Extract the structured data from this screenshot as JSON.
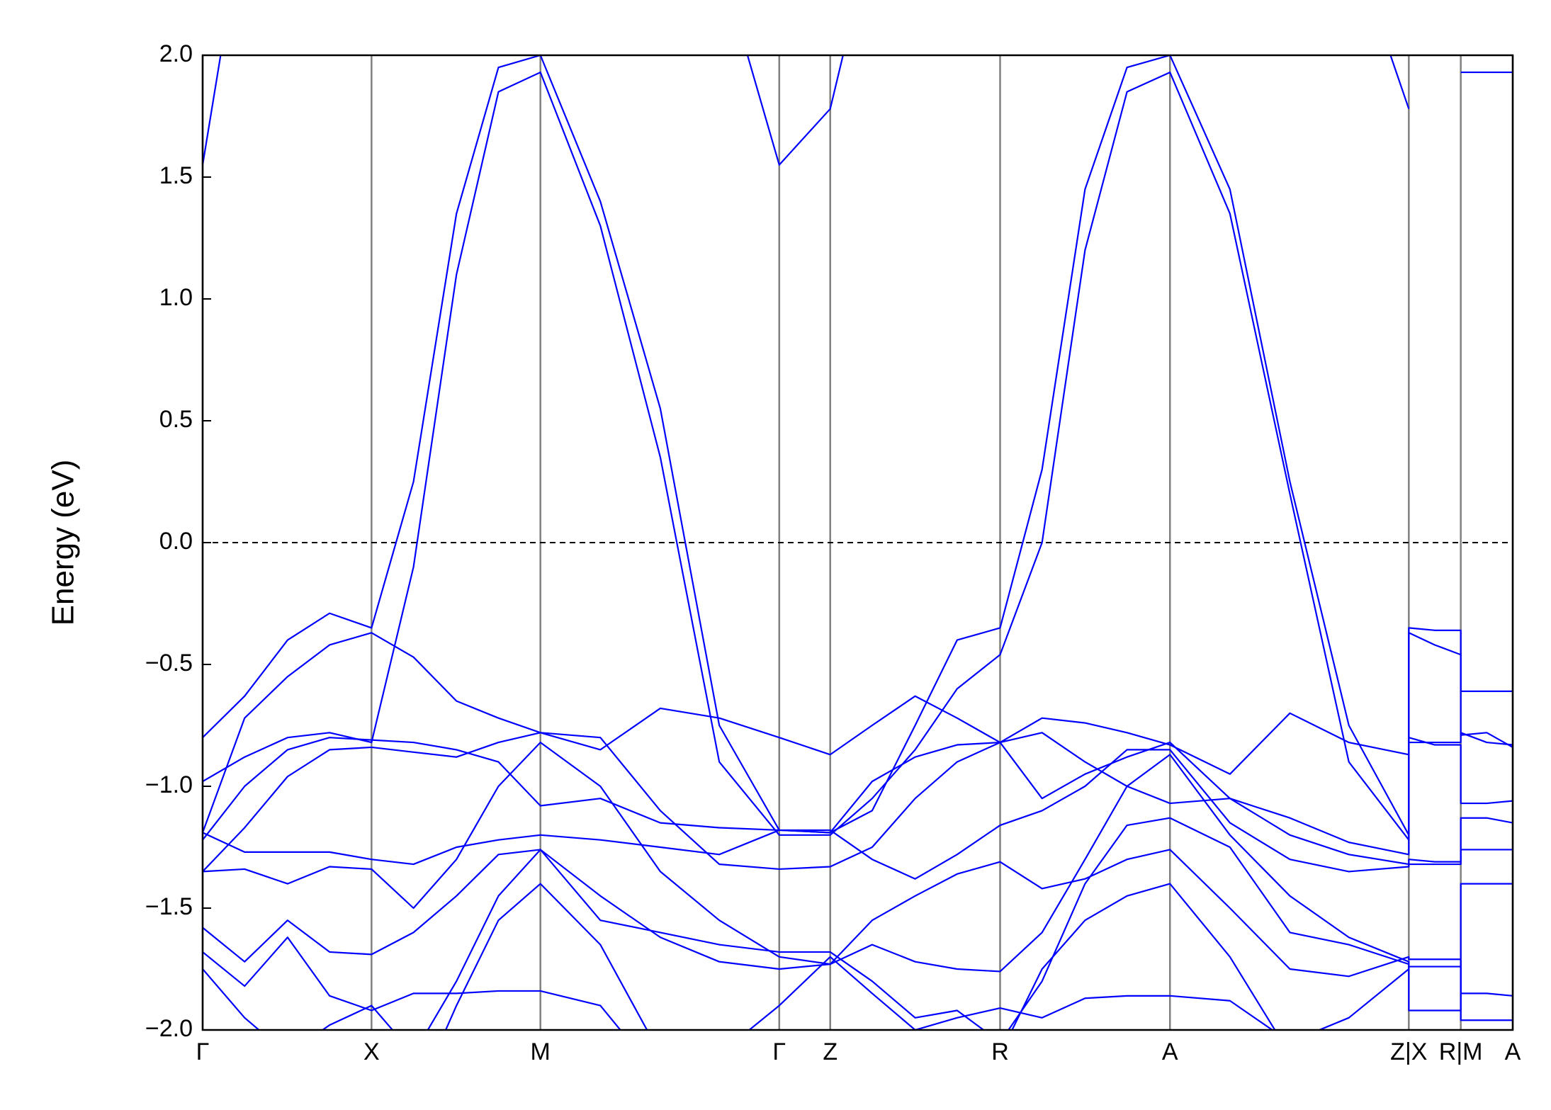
{
  "chart_data": {
    "type": "line",
    "ylabel": "Energy (eV)",
    "x": [
      0,
      0.42,
      0.85,
      1.27,
      1.69,
      2.11,
      2.54,
      2.96,
      3.38,
      3.98,
      4.58,
      5.17,
      5.77,
      6.28,
      6.7,
      7.13,
      7.55,
      7.98,
      8.4,
      8.83,
      9.25,
      9.68,
      10.28,
      10.88,
      11.47,
      12.07,
      12.07,
      12.33,
      12.59,
      12.59,
      12.85,
      13.11
    ],
    "xlim": [
      0,
      13.11
    ],
    "xticks": [
      {
        "value": 0,
        "label": "Γ"
      },
      {
        "value": 1.69,
        "label": "X"
      },
      {
        "value": 3.38,
        "label": "M"
      },
      {
        "value": 5.77,
        "label": "Γ"
      },
      {
        "value": 6.28,
        "label": "Z"
      },
      {
        "value": 7.98,
        "label": "R"
      },
      {
        "value": 9.68,
        "label": "A"
      },
      {
        "value": 12.07,
        "label": "Z|X"
      },
      {
        "value": 12.59,
        "label": "R|M"
      },
      {
        "value": 13.11,
        "label": "A"
      }
    ],
    "ylim": [
      -2,
      2
    ],
    "yticks": [
      {
        "value": -2,
        "label": "−2.0"
      },
      {
        "value": -1.5,
        "label": "−1.5"
      },
      {
        "value": -1,
        "label": "−1.0"
      },
      {
        "value": -0.5,
        "label": "−0.5"
      },
      {
        "value": 0,
        "label": "0.0"
      },
      0.5,
      {
        "value": 1,
        "label": "1.0"
      },
      1.5,
      {
        "value": 2,
        "label": "2.0"
      }
    ],
    "grid": "x",
    "fermi_level": 0,
    "series": [
      {
        "color": "#0000ff",
        "values": [
          1.55,
          2.6,
          null,
          null,
          null,
          null,
          null,
          null,
          null,
          null,
          null,
          2.4,
          1.55,
          1.78,
          2.5,
          null,
          null,
          null,
          null,
          null,
          null,
          null,
          null,
          null,
          2.5,
          1.78,
          null,
          null,
          null,
          1.93,
          1.93,
          1.93
        ]
      },
      {
        "color": "#0000ff",
        "values": [
          -0.8,
          -0.63,
          -0.4,
          -0.29,
          -0.35,
          0.25,
          1.35,
          1.95,
          2.0,
          1.4,
          0.55,
          -0.75,
          -1.18,
          -1.19,
          -1.1,
          -0.75,
          -0.4,
          -0.35,
          0.3,
          1.45,
          1.95,
          2.0,
          1.45,
          0.25,
          -0.75,
          -1.2,
          -0.35,
          -0.36,
          -0.36,
          -0.61,
          -0.61,
          -0.61
        ]
      },
      {
        "color": "#0000ff",
        "values": [
          -0.98,
          -0.88,
          -0.8,
          -0.78,
          -0.82,
          -0.1,
          1.1,
          1.85,
          1.93,
          1.3,
          0.35,
          -0.9,
          -1.2,
          -1.2,
          -1.05,
          -0.85,
          -0.6,
          -0.46,
          0.0,
          1.2,
          1.85,
          1.93,
          1.35,
          0.2,
          -0.9,
          -1.22,
          -0.37,
          -0.42,
          -0.46,
          -0.79,
          -0.78,
          -0.84
        ]
      },
      {
        "color": "#0000ff",
        "values": [
          -1.19,
          -0.72,
          -0.55,
          -0.42,
          -0.37,
          -0.47,
          -0.65,
          -0.72,
          -0.78,
          -0.85,
          -0.68,
          -0.72,
          -0.8,
          -0.87,
          -0.75,
          -0.63,
          -0.72,
          -0.82,
          -0.72,
          -0.74,
          -0.78,
          -0.83,
          -0.95,
          -0.7,
          -0.82,
          -0.87,
          -0.82,
          -0.82,
          -0.82,
          -0.78,
          -0.82,
          -0.83
        ]
      },
      {
        "color": "#0000ff",
        "values": [
          -1.22,
          -1.0,
          -0.85,
          -0.8,
          -0.81,
          -0.82,
          -0.85,
          -0.9,
          -1.08,
          -1.05,
          -1.15,
          -1.17,
          -1.18,
          -1.19,
          -0.98,
          -0.88,
          -0.83,
          -0.82,
          -0.78,
          -0.9,
          -1.0,
          -1.07,
          -1.05,
          -1.13,
          -1.23,
          -1.28,
          -0.8,
          -0.83,
          -0.83,
          -1.07,
          -1.07,
          -1.06
        ]
      },
      {
        "color": "#0000ff",
        "values": [
          -1.35,
          -1.17,
          -0.96,
          -0.85,
          -0.84,
          -0.86,
          -0.88,
          -0.82,
          -0.78,
          -0.8,
          -1.1,
          -1.32,
          -1.34,
          -1.33,
          -1.25,
          -1.05,
          -0.9,
          -0.82,
          -1.05,
          -0.95,
          -0.88,
          -0.82,
          -1.05,
          -1.2,
          -1.28,
          -1.32,
          -1.3,
          -1.31,
          -1.31,
          -1.13,
          -1.13,
          -1.15
        ]
      },
      {
        "color": "#0000ff",
        "values": [
          -1.19,
          -1.27,
          -1.27,
          -1.27,
          -1.3,
          -1.32,
          -1.25,
          -1.22,
          -1.2,
          -1.22,
          -1.25,
          -1.28,
          -1.18,
          -1.18,
          -1.3,
          -1.38,
          -1.28,
          -1.16,
          -1.1,
          -1.0,
          -0.85,
          -0.85,
          -1.15,
          -1.3,
          -1.35,
          -1.33,
          -1.32,
          -1.32,
          -1.32,
          -1.26,
          -1.26,
          -1.26
        ]
      },
      {
        "color": "#0000ff",
        "values": [
          -1.35,
          -1.34,
          -1.4,
          -1.33,
          -1.34,
          -1.5,
          -1.3,
          -1.0,
          -0.82,
          -1.0,
          -1.35,
          -1.55,
          -1.7,
          -1.73,
          -1.65,
          -1.72,
          -1.75,
          -1.76,
          -1.6,
          -1.3,
          -1.0,
          -0.87,
          -1.2,
          -1.45,
          -1.62,
          -1.72,
          -1.92,
          -1.92,
          -1.92,
          -1.4,
          -1.4,
          -1.4
        ]
      },
      {
        "color": "#0000ff",
        "values": [
          -1.58,
          -1.72,
          -1.55,
          -1.68,
          -1.69,
          -1.6,
          -1.45,
          -1.28,
          -1.26,
          -1.45,
          -1.62,
          -1.72,
          -1.75,
          -1.73,
          -1.55,
          -1.45,
          -1.36,
          -1.31,
          -1.42,
          -1.38,
          -1.3,
          -1.26,
          -1.5,
          -1.75,
          -1.78,
          -1.7,
          -1.71,
          -1.71,
          -1.71,
          -1.85,
          -1.85,
          -1.86
        ]
      },
      {
        "color": "#0000ff",
        "values": [
          -1.68,
          -1.82,
          -1.62,
          -1.86,
          -1.92,
          -1.85,
          -1.85,
          -1.84,
          -1.84,
          -1.9,
          -2.2,
          -2.1,
          -1.9,
          -1.7,
          -1.85,
          -2.0,
          -1.95,
          -1.91,
          -1.95,
          -1.87,
          -1.86,
          -1.86,
          -1.88,
          -2.05,
          -1.95,
          -1.75,
          -1.74,
          -1.74,
          -1.74,
          -1.96,
          -1.96,
          -1.96
        ]
      },
      {
        "color": "#0000ff",
        "values": [
          -1.75,
          -1.95,
          -2.1,
          -1.98,
          -1.9,
          -2.1,
          -1.8,
          -1.45,
          -1.26,
          -1.55,
          -1.6,
          -1.65,
          -1.68,
          -1.68,
          -1.8,
          -1.95,
          -1.92,
          -2.05,
          -1.8,
          -1.4,
          -1.16,
          -1.13,
          -1.25,
          -1.6,
          -1.65,
          -1.73,
          null,
          null,
          null,
          null,
          null,
          null
        ]
      },
      {
        "color": "#0000ff",
        "values": [
          null,
          null,
          null,
          null,
          null,
          -2.3,
          -1.9,
          -1.55,
          -1.4,
          -1.65,
          -2.1,
          null,
          null,
          null,
          null,
          null,
          null,
          -2.1,
          -1.75,
          -1.55,
          -1.45,
          -1.4,
          -1.7,
          -2.1,
          null,
          null,
          null,
          null,
          null,
          null,
          null,
          null
        ]
      }
    ]
  }
}
